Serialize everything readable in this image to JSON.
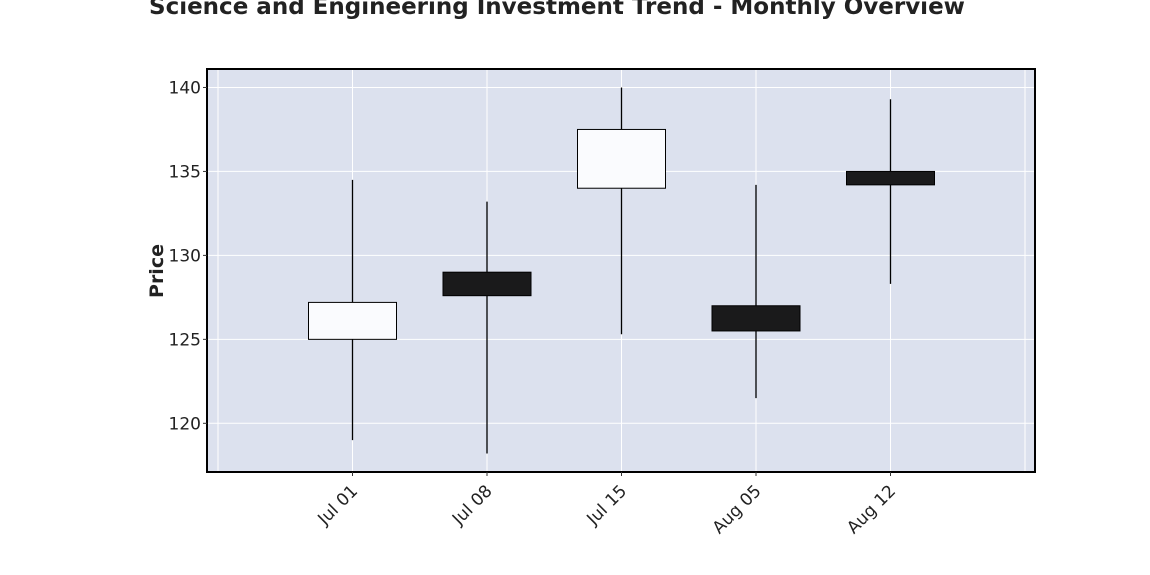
{
  "chart_data": {
    "type": "candlestick",
    "title": "Science and Engineering Investment Trend - Monthly Overview",
    "xlabel": "",
    "ylabel": "Price",
    "ylim": [
      117.1,
      141.1
    ],
    "yticks": [
      120,
      125,
      130,
      135,
      140
    ],
    "grid": true,
    "colors": {
      "plot_background": "#dce1ee",
      "up_fill": "#fafbfe",
      "down_fill": "#1a1a1b",
      "edge": "#000000",
      "grid": "#ffffff"
    },
    "candles": [
      {
        "date": "Jul 01",
        "open": 125.0,
        "high": 134.5,
        "low": 119.0,
        "close": 127.2
      },
      {
        "date": "Jul 08",
        "open": 129.0,
        "high": 133.2,
        "low": 118.2,
        "close": 127.6
      },
      {
        "date": "Jul 15",
        "open": 134.0,
        "high": 140.0,
        "low": 125.3,
        "close": 137.5
      },
      {
        "date": "Aug 05",
        "open": 127.0,
        "high": 134.2,
        "low": 121.5,
        "close": 125.5
      },
      {
        "date": "Aug 12",
        "open": 135.0,
        "high": 139.3,
        "low": 128.3,
        "close": 134.2
      }
    ]
  }
}
